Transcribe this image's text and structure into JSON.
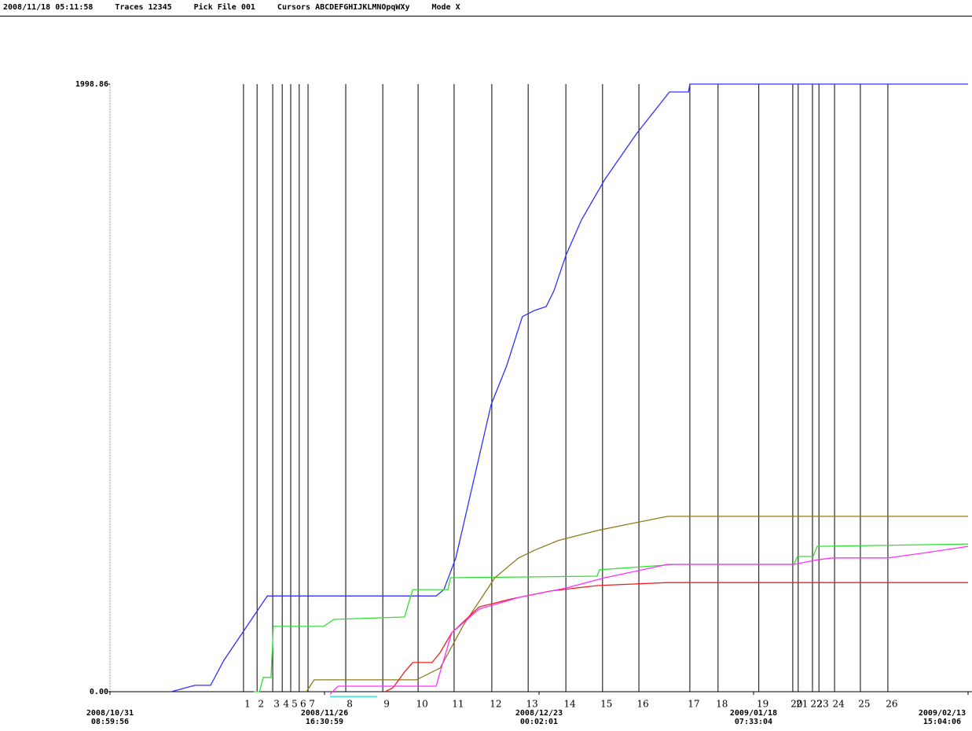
{
  "header": [
    "2008/11/18 05:11:58",
    "Traces 12345",
    "Pick File 001",
    "Cursors ABCDEFGHIJKLMNOpqWXy",
    "Mode X"
  ],
  "chart_data": {
    "type": "line",
    "xlim": [
      "2008/10/31 08:59:56",
      "2009/02/13 15:04:06"
    ],
    "xticks": [
      "2008/10/31 08:59:56",
      "2008/11/26 16:30:59",
      "2008/12/23 00:02:01",
      "2009/01/18 07:33:04",
      "2009/02/13 15:04:06"
    ],
    "ylim": [
      0,
      1998.86
    ],
    "yticks": [
      {
        "value": 1998.86,
        "label": "1998.86"
      },
      {
        "value": 0,
        "label": "0.00"
      }
    ],
    "series": [
      {
        "color": "#3030ff",
        "x": [
          "2008/11/07 21:00",
          "2008/11/10 19:00",
          "2008/11/11 18:00",
          "2008/11/12 17:00",
          "2008/11/14 08:00",
          "2008/11/19 16:00",
          "2008/12/10 09:00",
          "2008/12/11 08:00",
          "2008/12/12 19:00",
          "2008/12/17 03:00",
          "2008/12/19 01:00",
          "2008/12/20 23:00",
          "2008/12/22 10:00",
          "2008/12/23 21:00",
          "2008/12/24 20:00",
          "2008/12/26 07:00",
          "2008/12/28 05:00",
          "2008/12/31 02:00",
          "2009/01/03 23:00",
          "2009/01/08 00:00",
          "2009/01/10 08:00",
          "2009/01/10 12:00",
          "2009/02/13 15:04:06"
        ],
        "values": [
          0,
          21,
          21,
          21,
          103,
          315,
          315,
          336,
          440,
          944,
          1073,
          1234,
          1254,
          1267,
          1319,
          1435,
          1552,
          1686,
          1836,
          1973,
          1973,
          1998.86,
          1998.86
        ]
      },
      {
        "color": "#30e030",
        "x": [
          "2008/11/18 00:00",
          "2008/11/18 17:00",
          "2008/11/19 04:00",
          "2008/11/20 03:00",
          "2008/11/20 10:00",
          "2008/11/26 14:00",
          "2008/11/27 20:00",
          "2008/12/06 12:00",
          "2008/12/07 12:00",
          "2008/12/11 20:00",
          "2008/12/12 03:00",
          "2008/12/30 03:00",
          "2008/12/30 10:00",
          "2009/01/08 19:00",
          "2009/01/23 06:00",
          "2009/01/23 17:00",
          "2009/01/25 15:00",
          "2009/01/26 03:00",
          "2009/02/13 15:04:06"
        ],
        "values": [
          0,
          0,
          47,
          47,
          215,
          215,
          238,
          246,
          336,
          336,
          375,
          380,
          401,
          419,
          419,
          445,
          445,
          478,
          486
        ]
      },
      {
        "color": "#8b7d1a",
        "x": [
          "2008/11/24 11:00",
          "2008/11/25 10:00",
          "2008/12/07 23:00",
          "2008/12/10 21:00",
          "2008/12/13 18:00",
          "2008/12/17 14:00",
          "2008/12/20 12:00",
          "2008/12/22 10:00",
          "2008/12/25 08:00",
          "2008/12/30 03:00",
          "2009/01/02 23:00",
          "2009/01/07 19:00",
          "2009/02/13 15:04:06"
        ],
        "values": [
          0,
          39,
          39,
          78,
          220,
          375,
          440,
          465,
          497,
          530,
          551,
          577,
          577
        ]
      },
      {
        "color": "#ee2020",
        "x": [
          "2008/12/04 03:00",
          "2008/12/05 02:00",
          "2008/12/06 12:00",
          "2008/12/07 12:00",
          "2008/12/09 21:00",
          "2008/12/10 21:00",
          "2008/12/12 07:00",
          "2008/12/15 16:00",
          "2008/12/19 13:00",
          "2008/12/24 08:00",
          "2008/12/30 03:00",
          "2009/01/07 19:00",
          "2009/02/13 15:04:06"
        ],
        "values": [
          0,
          13,
          65,
          96,
          96,
          129,
          194,
          279,
          305,
          331,
          349,
          359,
          359
        ]
      },
      {
        "color": "#ff30ff",
        "x": [
          "2008/11/27 09:00",
          "2008/11/28 08:00",
          "2008/12/03 04:00",
          "2008/12/10 09:00",
          "2008/12/10 21:00",
          "2008/12/12 07:00",
          "2008/12/15 16:00",
          "2008/12/20 12:00",
          "2008/12/26 07:00",
          "2008/12/31 02:00",
          "2009/01/07 19:00",
          "2009/01/23 06:00",
          "2009/01/26 03:00",
          "2009/01/28 01:00",
          "2009/02/03 19:00",
          "2009/02/08 15:00",
          "2009/02/13 15:04:06"
        ],
        "values": [
          -8,
          18,
          18,
          18,
          65,
          194,
          272,
          310,
          341,
          375,
          419,
          419,
          434,
          440,
          440,
          458,
          478
        ]
      },
      {
        "color": "#30dddd",
        "x": [
          "2008/11/27 09:00",
          "2008/12/03 04:00"
        ],
        "values": [
          -16,
          -16
        ]
      }
    ],
    "cursors": [
      {
        "label": 1,
        "x": "2008/11/16 18:00"
      },
      {
        "label": 2,
        "x": "2008/11/18 10:00"
      },
      {
        "label": 3,
        "x": "2008/11/20 08:00"
      },
      {
        "label": 4,
        "x": "2008/11/21 12:00"
      },
      {
        "label": 5,
        "x": "2008/11/22 13:00"
      },
      {
        "label": 6,
        "x": "2008/11/23 14:00"
      },
      {
        "label": 7,
        "x": "2008/11/24 16:00"
      },
      {
        "label": 8,
        "x": "2008/11/29 07:00"
      },
      {
        "label": 9,
        "x": "2008/12/03 20:00"
      },
      {
        "label": 10,
        "x": "2008/12/08 04:00"
      },
      {
        "label": 11,
        "x": "2008/12/12 14:00"
      },
      {
        "label": 12,
        "x": "2008/12/17 05:00"
      },
      {
        "label": 13,
        "x": "2008/12/21 16:00"
      },
      {
        "label": 14,
        "x": "2008/12/26 07:00"
      },
      {
        "label": 15,
        "x": "2008/12/30 19:00"
      },
      {
        "label": 16,
        "x": "2009/01/04 06:00"
      },
      {
        "label": 17,
        "x": "2009/01/10 12:00"
      },
      {
        "label": 18,
        "x": "2009/01/13 23:00"
      },
      {
        "label": 19,
        "x": "2009/01/18 23:00"
      },
      {
        "label": 20,
        "x": "2009/01/23 03:00"
      },
      {
        "label": 21,
        "x": "2009/01/23 19:00"
      },
      {
        "label": 22,
        "x": "2009/01/25 13:00"
      },
      {
        "label": 23,
        "x": "2009/01/26 08:00"
      },
      {
        "label": 24,
        "x": "2009/01/28 06:00"
      },
      {
        "label": 25,
        "x": "2009/01/31 10:00"
      },
      {
        "label": 26,
        "x": "2009/02/03 19:00"
      }
    ]
  }
}
